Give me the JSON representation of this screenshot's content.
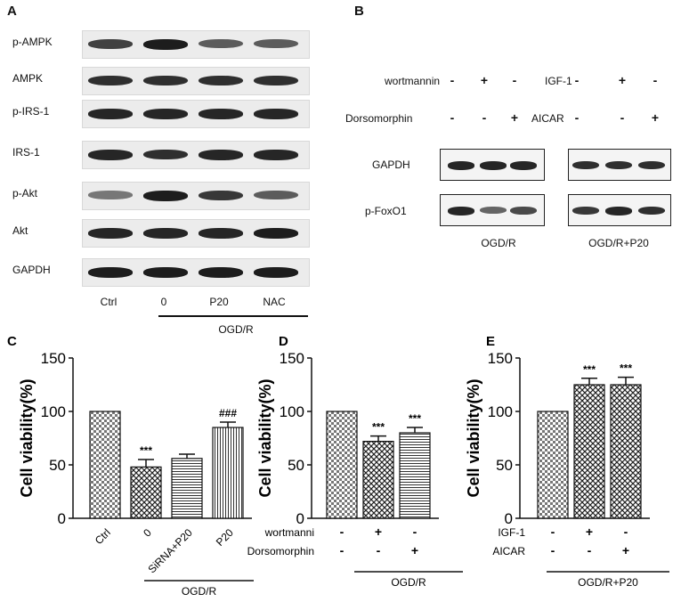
{
  "panel_a": {
    "letter": "A",
    "rows": [
      {
        "label": "p-AMPK",
        "intensity": [
          0.75,
          0.95,
          0.6,
          0.6
        ]
      },
      {
        "label": "AMPK",
        "intensity": [
          0.85,
          0.85,
          0.85,
          0.85
        ]
      },
      {
        "label": "p-IRS-1",
        "intensity": [
          0.9,
          0.9,
          0.9,
          0.9
        ]
      },
      {
        "label": "IRS-1",
        "intensity": [
          0.9,
          0.85,
          0.9,
          0.9
        ]
      },
      {
        "label": "p-Akt",
        "intensity": [
          0.45,
          0.95,
          0.8,
          0.6
        ]
      },
      {
        "label": "Akt",
        "intensity": [
          0.9,
          0.9,
          0.9,
          0.95
        ]
      },
      {
        "label": "GAPDH",
        "intensity": [
          0.95,
          0.95,
          0.95,
          0.95
        ]
      }
    ],
    "lanes": [
      "Ctrl",
      "0",
      "P20",
      "NAC"
    ],
    "group_label": "OGD/R"
  },
  "panel_b": {
    "letter": "B",
    "row1": {
      "left_label": "wortmannin",
      "left_signs": [
        "-",
        "+",
        "-"
      ],
      "right_label": "IGF-1",
      "right_signs": [
        "-",
        "+",
        "-"
      ]
    },
    "row2": {
      "left_label": "Dorsomorphin",
      "left_signs": [
        "-",
        "-",
        "+"
      ],
      "right_label": "AICAR",
      "right_signs": [
        "-",
        "-",
        "+"
      ]
    },
    "blots": [
      "GAPDH",
      "p-FoxO1"
    ],
    "group_left": "OGD/R",
    "group_right": "OGD/R+P20",
    "intensity": {
      "left": [
        [
          0.9,
          0.9,
          0.9
        ],
        [
          0.9,
          0.55,
          0.7
        ]
      ],
      "right": [
        [
          0.85,
          0.85,
          0.85
        ],
        [
          0.8,
          0.9,
          0.85
        ]
      ]
    }
  },
  "chart_data": [
    {
      "type": "bar",
      "letter": "C",
      "ylabel": "Cell viability(%)",
      "ylim": [
        0,
        150
      ],
      "yticks": [
        "0",
        "50",
        "100",
        "150"
      ],
      "categories": [
        "Ctrl",
        "0",
        "SiRNA+P20",
        "P20"
      ],
      "values": [
        100,
        48,
        56,
        85
      ],
      "errors": [
        0,
        7,
        4,
        5
      ],
      "annotations": [
        "",
        "***",
        "",
        "###"
      ],
      "group_label": "OGD/R"
    },
    {
      "type": "bar",
      "letter": "D",
      "ylabel": "Cell viability(%)",
      "ylim": [
        0,
        150
      ],
      "yticks": [
        "0",
        "50",
        "100",
        "150"
      ],
      "categories": [
        "",
        "",
        ""
      ],
      "values": [
        100,
        72,
        80
      ],
      "errors": [
        0,
        5,
        5
      ],
      "annotations": [
        "",
        "***",
        "***"
      ],
      "rows": [
        {
          "label": "wortmanni",
          "signs": [
            "-",
            "+",
            "-"
          ]
        },
        {
          "label": "Dorsomorphin",
          "signs": [
            "-",
            "-",
            "+"
          ]
        }
      ],
      "group_label": "OGD/R"
    },
    {
      "type": "bar",
      "letter": "E",
      "ylabel": "Cell viability(%)",
      "ylim": [
        0,
        150
      ],
      "yticks": [
        "0",
        "50",
        "100",
        "150"
      ],
      "categories": [
        "",
        "",
        ""
      ],
      "values": [
        100,
        125,
        125
      ],
      "errors": [
        0,
        6,
        7
      ],
      "annotations": [
        "",
        "***",
        "***"
      ],
      "rows": [
        {
          "label": "IGF-1",
          "signs": [
            "-",
            "+",
            "-"
          ]
        },
        {
          "label": "AICAR",
          "signs": [
            "-",
            "-",
            "+"
          ]
        }
      ],
      "group_label": "OGD/R+P20"
    }
  ]
}
